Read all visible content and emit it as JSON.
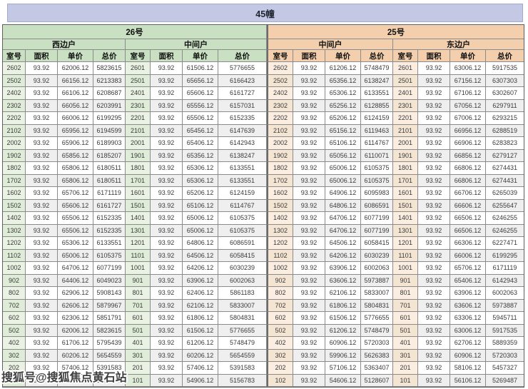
{
  "page_title": "45幢",
  "watermark": "搜狐号@搜狐焦点黄石站",
  "colors": {
    "title_bar_bg": "#c3c9e5",
    "green_header": "#c9e0c2",
    "green_room_cell": "#eaf2e3",
    "peach_header": "#f4cfad",
    "peach_room_cell": "#fbeee1",
    "row_alt": "#efefef",
    "grid_border": "#8b8b8b"
  },
  "table": {
    "buildings": [
      {
        "label": "26号",
        "unit_types": [
          "西边户",
          "中间户"
        ]
      },
      {
        "label": "25号",
        "unit_types": [
          "中间户",
          "东边户"
        ]
      }
    ],
    "columns": [
      "室号",
      "面积",
      "单价",
      "总价"
    ],
    "rows": [
      [
        "2602",
        "93.92",
        "62006.12",
        "5823615",
        "2601",
        "93.92",
        "61506.12",
        "5776655",
        "2602",
        "93.92",
        "61206.12",
        "5748479",
        "2601",
        "93.92",
        "63006.12",
        "5917535"
      ],
      [
        "2502",
        "93.92",
        "66156.12",
        "6213383",
        "2501",
        "93.92",
        "65656.12",
        "6166423",
        "2502",
        "93.92",
        "65356.12",
        "6138247",
        "2501",
        "93.92",
        "67156.12",
        "6307303"
      ],
      [
        "2402",
        "93.92",
        "66106.12",
        "6208687",
        "2401",
        "93.92",
        "65606.12",
        "6161727",
        "2402",
        "93.92",
        "65306.12",
        "6133551",
        "2401",
        "93.92",
        "67106.12",
        "6302607"
      ],
      [
        "2302",
        "93.92",
        "66056.12",
        "6203991",
        "2301",
        "93.92",
        "65556.12",
        "6157031",
        "2302",
        "93.92",
        "65256.12",
        "6128855",
        "2301",
        "93.92",
        "67056.12",
        "6297911"
      ],
      [
        "2202",
        "93.92",
        "66006.12",
        "6199295",
        "2201",
        "93.92",
        "65506.12",
        "6152335",
        "2202",
        "93.92",
        "65206.12",
        "6124159",
        "2201",
        "93.92",
        "67006.12",
        "6293215"
      ],
      [
        "2102",
        "93.92",
        "65956.12",
        "6194599",
        "2101",
        "93.92",
        "65456.12",
        "6147639",
        "2102",
        "93.92",
        "65156.12",
        "6119463",
        "2101",
        "93.92",
        "66956.12",
        "6288519"
      ],
      [
        "2002",
        "93.92",
        "65906.12",
        "6189903",
        "2001",
        "93.92",
        "65406.12",
        "6142943",
        "2002",
        "93.92",
        "65106.12",
        "6114767",
        "2001",
        "93.92",
        "66906.12",
        "6283823"
      ],
      [
        "1902",
        "93.92",
        "65856.12",
        "6185207",
        "1901",
        "93.92",
        "65356.12",
        "6138247",
        "1902",
        "93.92",
        "65056.12",
        "6110071",
        "1901",
        "93.92",
        "66856.12",
        "6279127"
      ],
      [
        "1802",
        "93.92",
        "65806.12",
        "6180511",
        "1801",
        "93.92",
        "65306.12",
        "6133551",
        "1802",
        "93.92",
        "65006.12",
        "6105375",
        "1801",
        "93.92",
        "66806.12",
        "6274431"
      ],
      [
        "1702",
        "93.92",
        "65806.12",
        "6180511",
        "1701",
        "93.92",
        "65306.12",
        "6133551",
        "1702",
        "93.92",
        "65006.12",
        "6105375",
        "1701",
        "93.92",
        "66806.12",
        "6274431"
      ],
      [
        "1602",
        "93.92",
        "65706.12",
        "6171119",
        "1601",
        "93.92",
        "65206.12",
        "6124159",
        "1602",
        "93.92",
        "64906.12",
        "6095983",
        "1601",
        "93.92",
        "66706.12",
        "6265039"
      ],
      [
        "1502",
        "93.92",
        "65606.12",
        "6161727",
        "1501",
        "93.92",
        "65106.12",
        "6114767",
        "1502",
        "93.92",
        "64806.12",
        "6086591",
        "1501",
        "93.92",
        "66606.12",
        "6255647"
      ],
      [
        "1402",
        "93.92",
        "65506.12",
        "6152335",
        "1401",
        "93.92",
        "65006.12",
        "6105375",
        "1402",
        "93.92",
        "64706.12",
        "6077199",
        "1401",
        "93.92",
        "66506.12",
        "6246255"
      ],
      [
        "1302",
        "93.92",
        "65506.12",
        "6152335",
        "1301",
        "93.92",
        "65006.12",
        "6105375",
        "1302",
        "93.92",
        "64706.12",
        "6077199",
        "1301",
        "93.92",
        "66506.12",
        "6246255"
      ],
      [
        "1202",
        "93.92",
        "65306.12",
        "6133551",
        "1201",
        "93.92",
        "64806.12",
        "6086591",
        "1202",
        "93.92",
        "64506.12",
        "6058415",
        "1201",
        "93.92",
        "66306.12",
        "6227471"
      ],
      [
        "1102",
        "93.92",
        "65006.12",
        "6105375",
        "1101",
        "93.92",
        "64506.12",
        "6058415",
        "1102",
        "93.92",
        "64206.12",
        "6030239",
        "1101",
        "93.92",
        "66006.12",
        "6199295"
      ],
      [
        "1002",
        "93.92",
        "64706.12",
        "6077199",
        "1001",
        "93.92",
        "64206.12",
        "6030239",
        "1002",
        "93.92",
        "63906.12",
        "6002063",
        "1001",
        "93.92",
        "65706.12",
        "6171119"
      ],
      [
        "902",
        "93.92",
        "64406.12",
        "6049023",
        "901",
        "93.92",
        "63906.12",
        "6002063",
        "902",
        "93.92",
        "63606.12",
        "5973887",
        "901",
        "93.92",
        "65406.12",
        "6142943"
      ],
      [
        "802",
        "93.92",
        "62906.12",
        "5908143",
        "801",
        "93.92",
        "62406.12",
        "5861183",
        "802",
        "93.92",
        "62106.12",
        "5833007",
        "801",
        "93.92",
        "63906.12",
        "6002063"
      ],
      [
        "702",
        "93.92",
        "62606.12",
        "5879967",
        "701",
        "93.92",
        "62106.12",
        "5833007",
        "702",
        "93.92",
        "61806.12",
        "5804831",
        "701",
        "93.92",
        "63606.12",
        "5973887"
      ],
      [
        "602",
        "93.92",
        "62306.12",
        "5851791",
        "601",
        "93.92",
        "61806.12",
        "5804831",
        "602",
        "93.92",
        "61506.12",
        "5776655",
        "601",
        "93.92",
        "63306.12",
        "5945711"
      ],
      [
        "502",
        "93.92",
        "62006.12",
        "5823615",
        "501",
        "93.92",
        "61506.12",
        "5776655",
        "502",
        "93.92",
        "61206.12",
        "5748479",
        "501",
        "93.92",
        "63006.12",
        "5917535"
      ],
      [
        "402",
        "93.92",
        "61706.12",
        "5795439",
        "401",
        "93.92",
        "61206.12",
        "5748479",
        "402",
        "93.92",
        "60906.12",
        "5720303",
        "401",
        "93.92",
        "62706.12",
        "5889359"
      ],
      [
        "302",
        "93.92",
        "60206.12",
        "5654559",
        "301",
        "93.92",
        "60206.12",
        "5654559",
        "302",
        "93.92",
        "59906.12",
        "5626383",
        "301",
        "93.92",
        "60906.12",
        "5720303"
      ],
      [
        "202",
        "93.92",
        "57406.12",
        "5391583",
        "201",
        "93.92",
        "57406.12",
        "5391583",
        "202",
        "93.92",
        "57106.12",
        "5363407",
        "201",
        "93.92",
        "58106.12",
        "5457327"
      ],
      [
        "102",
        "93.92",
        "55406.12",
        "5203743",
        "101",
        "93.92",
        "54906.12",
        "5156783",
        "102",
        "93.92",
        "54606.12",
        "5128607",
        "101",
        "93.92",
        "56106.12",
        "5269487"
      ]
    ]
  }
}
